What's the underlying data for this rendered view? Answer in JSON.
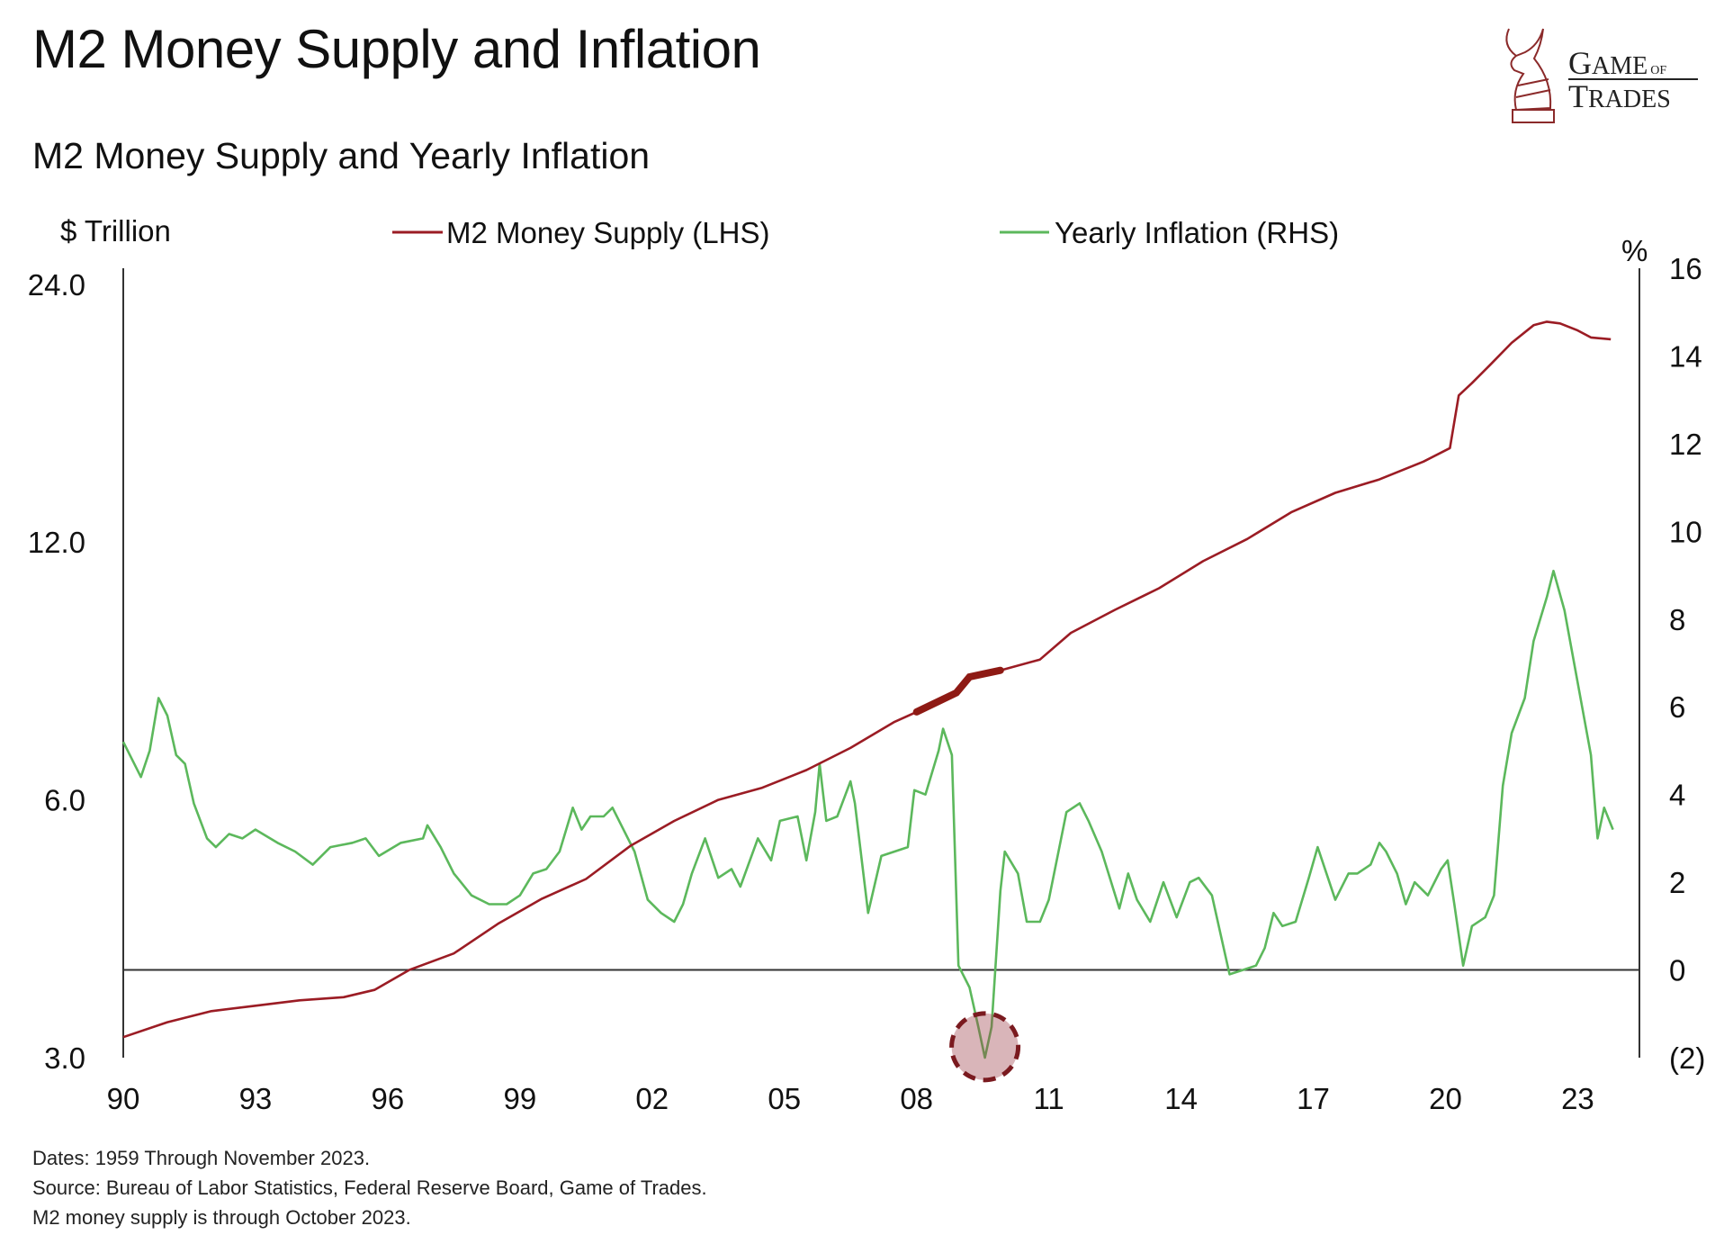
{
  "header": {
    "title": "M2 Money Supply and Inflation",
    "subtitle": "M2 Money Supply and Yearly Inflation"
  },
  "logo": {
    "text": "GAME OF TRADES",
    "icon": "bull-chess-knight-icon",
    "color": "#8b1a1a"
  },
  "footnotes": [
    "Dates: 1959 Through November 2023.",
    "Source: Bureau of Labor Statistics, Federal Reserve Board, Game of Trades.",
    "M2 money supply is through October 2023."
  ],
  "chart_data": {
    "type": "line",
    "title": "M2 Money Supply and Yearly Inflation",
    "left_axis": {
      "label": "$ Trillion",
      "scale": "log",
      "ticks": [
        3.0,
        6.0,
        12.0,
        24.0
      ],
      "tick_labels": [
        "3.0",
        "6.0",
        "12.0",
        "24.0"
      ],
      "range": [
        3.0,
        24.0
      ]
    },
    "right_axis": {
      "label": "%",
      "scale": "linear",
      "ticks": [
        -2,
        0,
        2,
        4,
        6,
        8,
        10,
        12,
        14,
        16
      ],
      "tick_labels": [
        "(2)",
        "0",
        "2",
        "4",
        "6",
        "8",
        "10",
        "12",
        "14",
        "16"
      ],
      "range": [
        -2,
        16
      ]
    },
    "x_axis": {
      "ticks": [
        1990,
        1993,
        1996,
        1999,
        2002,
        2005,
        2008,
        2011,
        2014,
        2017,
        2020,
        2023
      ],
      "tick_labels": [
        "90",
        "93",
        "96",
        "99",
        "02",
        "05",
        "08",
        "11",
        "14",
        "17",
        "20",
        "23"
      ],
      "range": [
        1990,
        2024.4
      ]
    },
    "grid": false,
    "legend_position": "top",
    "series": [
      {
        "name": "M2 Money Supply (LHS)",
        "axis": "left",
        "color": "#9b1c24",
        "highlight_range": [
          2008.0,
          2010.3
        ],
        "points": [
          [
            1990.0,
            3.17
          ],
          [
            1991.0,
            3.3
          ],
          [
            1992.0,
            3.4
          ],
          [
            1993.0,
            3.45
          ],
          [
            1994.0,
            3.5
          ],
          [
            1995.0,
            3.53
          ],
          [
            1995.7,
            3.6
          ],
          [
            1996.5,
            3.8
          ],
          [
            1997.5,
            3.97
          ],
          [
            1998.5,
            4.3
          ],
          [
            1999.5,
            4.6
          ],
          [
            2000.5,
            4.85
          ],
          [
            2001.5,
            5.3
          ],
          [
            2002.5,
            5.67
          ],
          [
            2003.5,
            6.0
          ],
          [
            2004.5,
            6.2
          ],
          [
            2005.5,
            6.5
          ],
          [
            2006.5,
            6.9
          ],
          [
            2007.5,
            7.4
          ],
          [
            2008.0,
            7.6
          ],
          [
            2008.9,
            8.0
          ],
          [
            2009.2,
            8.35
          ],
          [
            2009.9,
            8.5
          ],
          [
            2010.8,
            8.75
          ],
          [
            2011.5,
            9.4
          ],
          [
            2012.5,
            10.0
          ],
          [
            2013.5,
            10.6
          ],
          [
            2014.5,
            11.4
          ],
          [
            2015.5,
            12.1
          ],
          [
            2016.5,
            13.0
          ],
          [
            2017.5,
            13.7
          ],
          [
            2018.5,
            14.2
          ],
          [
            2019.5,
            14.9
          ],
          [
            2020.1,
            15.45
          ],
          [
            2020.3,
            17.8
          ],
          [
            2020.6,
            18.4
          ],
          [
            2021.0,
            19.3
          ],
          [
            2021.5,
            20.5
          ],
          [
            2022.0,
            21.5
          ],
          [
            2022.3,
            21.7
          ],
          [
            2022.6,
            21.6
          ],
          [
            2023.0,
            21.2
          ],
          [
            2023.3,
            20.8
          ],
          [
            2023.75,
            20.7
          ]
        ]
      },
      {
        "name": "Yearly Inflation (RHS)",
        "axis": "right",
        "color": "#5cb85c",
        "points": [
          [
            1990.0,
            5.2
          ],
          [
            1990.4,
            4.4
          ],
          [
            1990.6,
            5.0
          ],
          [
            1990.8,
            6.2
          ],
          [
            1991.0,
            5.8
          ],
          [
            1991.2,
            4.9
          ],
          [
            1991.4,
            4.7
          ],
          [
            1991.6,
            3.8
          ],
          [
            1991.9,
            3.0
          ],
          [
            1992.1,
            2.8
          ],
          [
            1992.4,
            3.1
          ],
          [
            1992.7,
            3.0
          ],
          [
            1993.0,
            3.2
          ],
          [
            1993.5,
            2.9
          ],
          [
            1993.9,
            2.7
          ],
          [
            1994.3,
            2.4
          ],
          [
            1994.7,
            2.8
          ],
          [
            1995.2,
            2.9
          ],
          [
            1995.5,
            3.0
          ],
          [
            1995.8,
            2.6
          ],
          [
            1996.3,
            2.9
          ],
          [
            1996.8,
            3.0
          ],
          [
            1996.9,
            3.3
          ],
          [
            1997.2,
            2.8
          ],
          [
            1997.5,
            2.2
          ],
          [
            1997.9,
            1.7
          ],
          [
            1998.3,
            1.5
          ],
          [
            1998.7,
            1.5
          ],
          [
            1999.0,
            1.7
          ],
          [
            1999.3,
            2.2
          ],
          [
            1999.6,
            2.3
          ],
          [
            1999.9,
            2.7
          ],
          [
            2000.2,
            3.7
          ],
          [
            2000.4,
            3.2
          ],
          [
            2000.6,
            3.5
          ],
          [
            2000.9,
            3.5
          ],
          [
            2001.1,
            3.7
          ],
          [
            2001.3,
            3.3
          ],
          [
            2001.6,
            2.7
          ],
          [
            2001.9,
            1.6
          ],
          [
            2002.2,
            1.3
          ],
          [
            2002.5,
            1.1
          ],
          [
            2002.7,
            1.5
          ],
          [
            2002.9,
            2.2
          ],
          [
            2003.2,
            3.0
          ],
          [
            2003.5,
            2.1
          ],
          [
            2003.8,
            2.3
          ],
          [
            2004.0,
            1.9
          ],
          [
            2004.4,
            3.0
          ],
          [
            2004.7,
            2.5
          ],
          [
            2004.9,
            3.4
          ],
          [
            2005.3,
            3.5
          ],
          [
            2005.5,
            2.5
          ],
          [
            2005.7,
            3.6
          ],
          [
            2005.8,
            4.7
          ],
          [
            2005.95,
            3.4
          ],
          [
            2006.2,
            3.5
          ],
          [
            2006.5,
            4.3
          ],
          [
            2006.6,
            3.8
          ],
          [
            2006.9,
            1.3
          ],
          [
            2007.2,
            2.6
          ],
          [
            2007.5,
            2.7
          ],
          [
            2007.8,
            2.8
          ],
          [
            2007.95,
            4.1
          ],
          [
            2008.2,
            4.0
          ],
          [
            2008.5,
            5.0
          ],
          [
            2008.6,
            5.5
          ],
          [
            2008.8,
            4.9
          ],
          [
            2008.95,
            0.1
          ],
          [
            2009.2,
            -0.4
          ],
          [
            2009.4,
            -1.3
          ],
          [
            2009.55,
            -2.0
          ],
          [
            2009.7,
            -1.3
          ],
          [
            2009.9,
            1.8
          ],
          [
            2010.0,
            2.7
          ],
          [
            2010.3,
            2.2
          ],
          [
            2010.5,
            1.1
          ],
          [
            2010.8,
            1.1
          ],
          [
            2011.0,
            1.6
          ],
          [
            2011.4,
            3.6
          ],
          [
            2011.7,
            3.8
          ],
          [
            2011.9,
            3.4
          ],
          [
            2012.2,
            2.7
          ],
          [
            2012.6,
            1.4
          ],
          [
            2012.8,
            2.2
          ],
          [
            2013.0,
            1.6
          ],
          [
            2013.3,
            1.1
          ],
          [
            2013.6,
            2.0
          ],
          [
            2013.9,
            1.2
          ],
          [
            2014.2,
            2.0
          ],
          [
            2014.4,
            2.1
          ],
          [
            2014.7,
            1.7
          ],
          [
            2014.9,
            0.8
          ],
          [
            2015.1,
            -0.1
          ],
          [
            2015.4,
            0.0
          ],
          [
            2015.7,
            0.1
          ],
          [
            2015.9,
            0.5
          ],
          [
            2016.1,
            1.3
          ],
          [
            2016.3,
            1.0
          ],
          [
            2016.6,
            1.1
          ],
          [
            2016.9,
            2.1
          ],
          [
            2017.1,
            2.8
          ],
          [
            2017.5,
            1.6
          ],
          [
            2017.8,
            2.2
          ],
          [
            2018.0,
            2.2
          ],
          [
            2018.3,
            2.4
          ],
          [
            2018.5,
            2.9
          ],
          [
            2018.65,
            2.7
          ],
          [
            2018.9,
            2.2
          ],
          [
            2019.1,
            1.5
          ],
          [
            2019.3,
            2.0
          ],
          [
            2019.6,
            1.7
          ],
          [
            2019.9,
            2.3
          ],
          [
            2020.05,
            2.5
          ],
          [
            2020.2,
            1.5
          ],
          [
            2020.4,
            0.1
          ],
          [
            2020.6,
            1.0
          ],
          [
            2020.9,
            1.2
          ],
          [
            2021.1,
            1.7
          ],
          [
            2021.3,
            4.2
          ],
          [
            2021.5,
            5.4
          ],
          [
            2021.8,
            6.2
          ],
          [
            2022.0,
            7.5
          ],
          [
            2022.3,
            8.5
          ],
          [
            2022.45,
            9.1
          ],
          [
            2022.7,
            8.2
          ],
          [
            2022.9,
            7.1
          ],
          [
            2023.1,
            6.0
          ],
          [
            2023.3,
            4.9
          ],
          [
            2023.45,
            3.0
          ],
          [
            2023.6,
            3.7
          ],
          [
            2023.8,
            3.2
          ]
        ]
      }
    ],
    "annotations": [
      {
        "type": "dashed-circle-highlight",
        "x": 2009.55,
        "y": -1.75,
        "axis": "right",
        "color": "#7a1a1f"
      }
    ]
  }
}
